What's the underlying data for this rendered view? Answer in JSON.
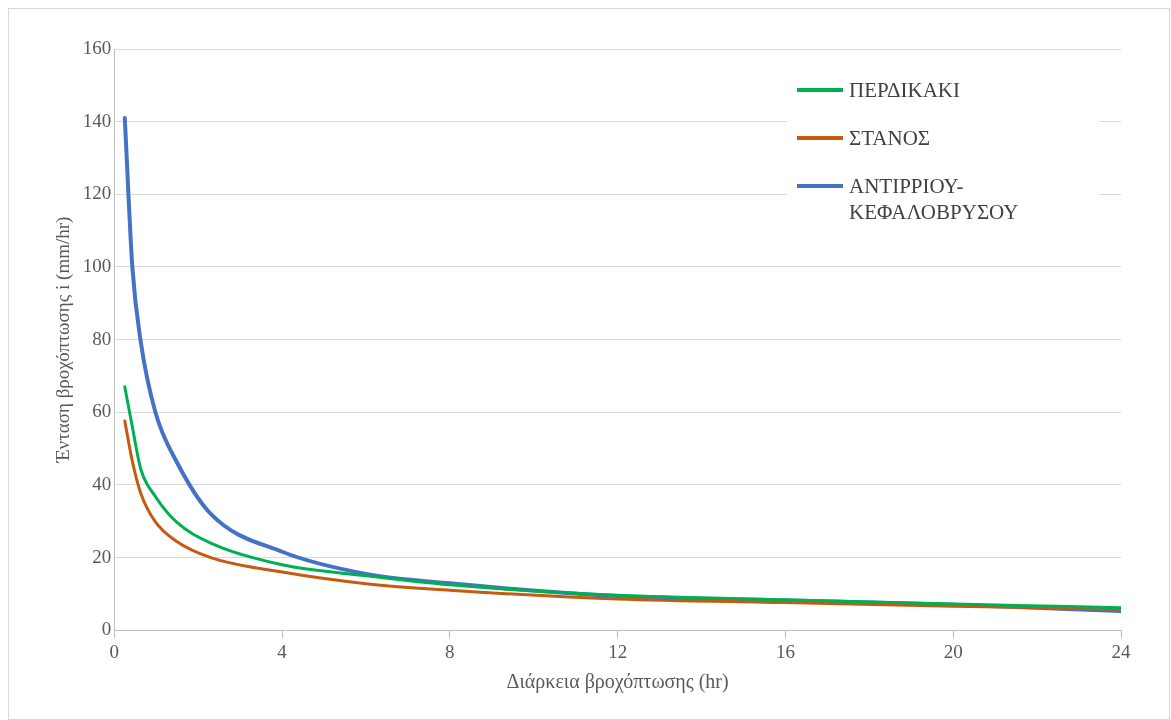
{
  "chart_data": {
    "type": "line",
    "xlabel": "Διάρκεια βροχόπτωσης (hr)",
    "ylabel": "Ένταση βροχόπτωσης i (mm/hr)",
    "xlim": [
      0,
      24
    ],
    "xticks": [
      0,
      4,
      8,
      12,
      16,
      20,
      24
    ],
    "ylim": [
      0,
      160
    ],
    "yticks": [
      0,
      20,
      40,
      60,
      80,
      100,
      120,
      140,
      160
    ],
    "grid": "y",
    "legend": "top right",
    "marker": "none",
    "line_style": "solid",
    "series": [
      {
        "name": "ΠΕΡΔΙΚΑΚΙ",
        "color": "#00b050",
        "x": [
          0.25,
          0.43,
          0.63,
          0.98,
          1.48,
          2.3,
          4,
          6,
          8,
          12,
          16,
          20,
          24
        ],
        "values": [
          67,
          56,
          44.4,
          36.8,
          29.8,
          24,
          18,
          15,
          12.5,
          9.6,
          8.4,
          7.2,
          6.2
        ]
      },
      {
        "name": "ΣΤΑΝΟΣ",
        "color": "#c55a11",
        "x": [
          0.25,
          0.43,
          0.63,
          0.98,
          1.48,
          2.3,
          4,
          6,
          8,
          12,
          16,
          20,
          24
        ],
        "values": [
          57.6,
          46.5,
          37.7,
          29.8,
          24.5,
          20,
          16,
          12.8,
          11,
          8.6,
          7.6,
          6.6,
          5.8
        ]
      },
      {
        "name": "ΑΝΤΙΡΡΙΟΥ-ΚΕΦΑΛΟΒΡΥΣΟΥ",
        "color": "#4472c4",
        "x": [
          0.25,
          0.43,
          0.63,
          0.98,
          1.48,
          2.3,
          4,
          6,
          8,
          12,
          16,
          20,
          24
        ],
        "values": [
          141,
          100,
          79.5,
          60,
          46.5,
          32,
          21.6,
          15.5,
          12.9,
          9.4,
          8.2,
          7,
          5.3
        ]
      }
    ]
  }
}
